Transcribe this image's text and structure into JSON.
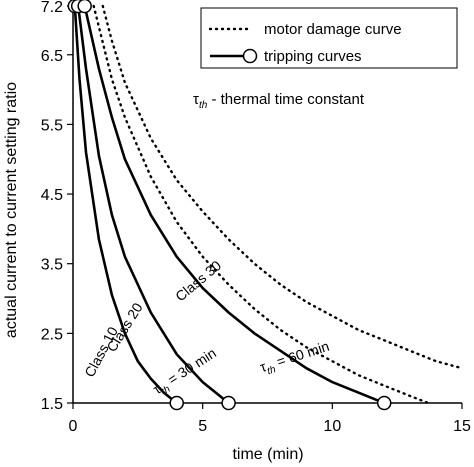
{
  "chart_data": {
    "type": "line",
    "xlabel": "time (min)",
    "ylabel": "actual current to current setting ratio",
    "xlim": [
      0,
      15
    ],
    "ylim": [
      1.5,
      7.2
    ],
    "xticks": [
      0,
      5,
      10,
      15
    ],
    "yticks": [
      1.5,
      2.5,
      3.5,
      4.5,
      5.5,
      6.5,
      7.2
    ],
    "legend_position": "top-right",
    "legend": [
      {
        "label": "motor damage curve",
        "style": "dotted"
      },
      {
        "label": "tripping curves",
        "style": "solid-with-circle-markers"
      }
    ],
    "legend_note": {
      "main": "τ",
      "sub": "th",
      "rest": " - thermal time constant"
    },
    "series": [
      {
        "name": "Class 10",
        "style": "solid",
        "x": [
          0.07,
          0.25,
          0.5,
          1.0,
          1.5,
          2.0,
          2.5,
          3.0,
          3.5,
          4.0
        ],
        "y": [
          7.2,
          6.15,
          5.1,
          3.85,
          3.05,
          2.5,
          2.1,
          1.85,
          1.65,
          1.5
        ],
        "markers": [
          [
            0.07,
            7.2
          ],
          [
            4.0,
            1.5
          ]
        ]
      },
      {
        "name": "Class 20",
        "style": "solid",
        "x": [
          0.2,
          0.5,
          1.0,
          1.5,
          2.0,
          3.0,
          4.0,
          5.0,
          6.0
        ],
        "y": [
          7.2,
          6.3,
          5.05,
          4.2,
          3.6,
          2.8,
          2.2,
          1.8,
          1.5
        ],
        "markers": [
          [
            0.2,
            7.2
          ],
          [
            6.0,
            1.5
          ]
        ]
      },
      {
        "name": "Class 30",
        "style": "solid",
        "x": [
          0.45,
          1.0,
          1.5,
          2.0,
          3.0,
          4.0,
          5.0,
          6.0,
          7.0,
          8.0,
          9.0,
          10.0,
          11.0,
          12.0
        ],
        "y": [
          7.2,
          6.3,
          5.6,
          5.0,
          4.2,
          3.6,
          3.15,
          2.8,
          2.5,
          2.25,
          2.0,
          1.8,
          1.65,
          1.5
        ],
        "markers": [
          [
            0.45,
            7.2
          ],
          [
            12.0,
            1.5
          ]
        ]
      },
      {
        "name": "τth = 30 min",
        "style": "dotted",
        "x": [
          0.8,
          1.0,
          1.5,
          2.0,
          3.0,
          4.0,
          5.0,
          6.0,
          7.0,
          8.0,
          9.0,
          10.0,
          11.0,
          12.0,
          13.0,
          13.7
        ],
        "y": [
          7.2,
          6.9,
          6.15,
          5.6,
          4.75,
          4.1,
          3.6,
          3.2,
          2.85,
          2.55,
          2.3,
          2.1,
          1.9,
          1.75,
          1.6,
          1.5
        ],
        "markers": []
      },
      {
        "name": "τth = 60 min",
        "style": "dotted",
        "x": [
          1.15,
          1.5,
          2.0,
          3.0,
          4.0,
          5.0,
          6.0,
          7.0,
          8.0,
          9.0,
          10.0,
          11.0,
          12.0,
          13.0,
          14.0,
          15.0
        ],
        "y": [
          7.2,
          6.7,
          6.1,
          5.3,
          4.7,
          4.25,
          3.85,
          3.5,
          3.2,
          2.95,
          2.75,
          2.55,
          2.4,
          2.25,
          2.1,
          2.0
        ],
        "markers": []
      }
    ],
    "annotations": [
      {
        "main": "Class 10",
        "sub": "",
        "rest": "",
        "x": 1.25,
        "y": 2.2,
        "rotate": -62
      },
      {
        "main": "Class 20",
        "sub": "",
        "rest": "",
        "x": 2.15,
        "y": 2.55,
        "rotate": -58
      },
      {
        "main": "Class 30",
        "sub": "",
        "rest": "",
        "x": 4.95,
        "y": 3.2,
        "rotate": -40
      },
      {
        "main": "τ",
        "sub": "th",
        "rest": " = 30 min",
        "x": 4.4,
        "y": 1.9,
        "rotate": -33
      },
      {
        "main": "τ",
        "sub": "th",
        "rest": " = 60 min",
        "x": 8.6,
        "y": 2.1,
        "rotate": -18
      }
    ]
  }
}
